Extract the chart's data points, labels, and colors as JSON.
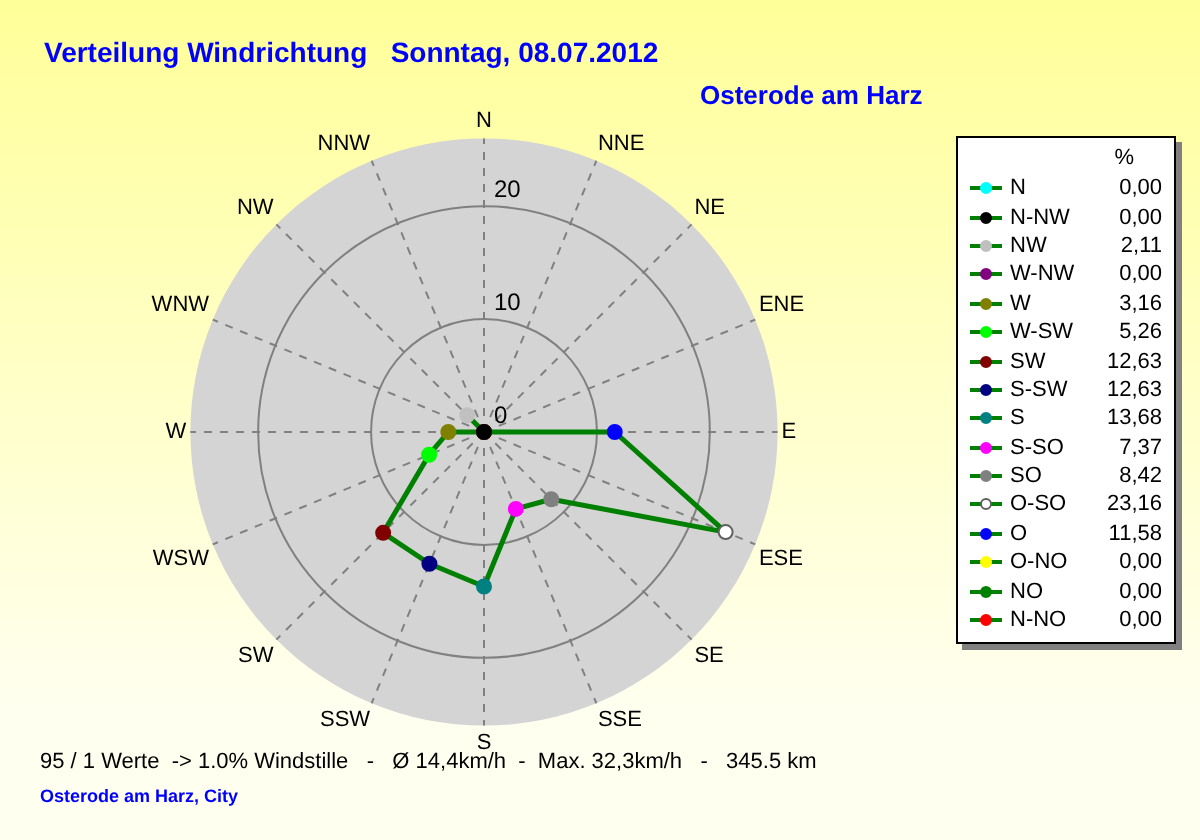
{
  "chart_data": {
    "type": "radar",
    "title": "Verteilung Windrichtung   Sonntag, 08.07.2012",
    "subtitle": "Osterode am Harz",
    "categories": [
      "N",
      "NNE",
      "NE",
      "ENE",
      "E",
      "ESE",
      "SE",
      "SSE",
      "S",
      "SSW",
      "SW",
      "WSW",
      "W",
      "WNW",
      "NW",
      "NNW"
    ],
    "ylim": [
      0,
      26
    ],
    "yticks": [
      0,
      10,
      20
    ],
    "grid": true,
    "marker": "circle",
    "legend_title": "%",
    "series": [
      {
        "color": "#008000",
        "values": [
          0,
          0,
          0,
          0,
          11.58,
          23.16,
          8.42,
          7.37,
          13.68,
          12.63,
          12.63,
          5.26,
          3.16,
          0,
          2.11,
          0
        ],
        "colors": [
          "#00ffff",
          "#ff0000",
          "#008000",
          "#ffff00",
          "#0000ff",
          "#ffffff",
          "#808080",
          "#ff00ff",
          "#008080",
          "#000080",
          "#800000",
          "#00ff00",
          "#808000",
          "#800080",
          "#c0c0c0",
          "#000000"
        ]
      }
    ],
    "annotations": [
      "N 0,00",
      "N-NW 0,00",
      "NW 2,11",
      "W-NW 0,00",
      "W 3,16",
      "W-SW 5,26",
      "SW 12,63",
      "S-SW 12,63",
      "S 13,68",
      "S-SO 7,37",
      "SO 8,42",
      "O-SO 23,16",
      "O 11,58",
      "O-NO 0,00",
      "NO 0,00",
      "N-NO 0,00",
      "95 / 1 Werte  -> 1.0% Windstille   -   Ø 14,4km/h  -  Max. 32,3km/h   -   345.5 km",
      "Osterode am Harz, City"
    ]
  }
}
